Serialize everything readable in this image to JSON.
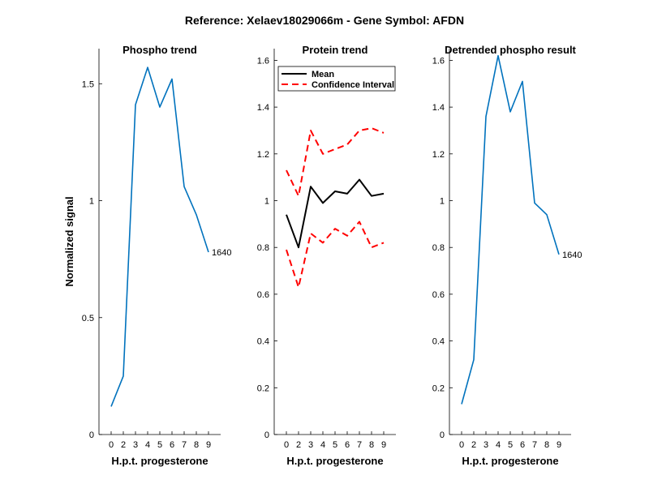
{
  "figure_title": "Reference:  Xelaev18029066m - Gene Symbol:  AFDN",
  "chart_data": [
    {
      "type": "line",
      "title": "Phospho trend",
      "xlabel": "H.p.t. progesterone",
      "ylabel": "Normalized signal",
      "categories": [
        "0",
        "2",
        "3",
        "4",
        "5",
        "6",
        "7",
        "8",
        "9"
      ],
      "xlim": [
        0,
        9
      ],
      "ylim": [
        0,
        1.65
      ],
      "yticks": [
        0,
        0.5,
        1,
        1.5
      ],
      "ytick_labels": [
        "0",
        "0.5",
        "1",
        "1.5"
      ],
      "series": [
        {
          "name": "Phospho",
          "color": "#0072BD",
          "dash": "solid",
          "values": [
            0.12,
            0.25,
            1.41,
            1.57,
            1.4,
            1.52,
            1.06,
            0.94,
            0.78
          ]
        }
      ],
      "annotation": {
        "text": "1640",
        "index": 8
      }
    },
    {
      "type": "line",
      "title": "Protein trend",
      "xlabel": "H.p.t. progesterone",
      "ylabel": "",
      "categories": [
        "0",
        "2",
        "3",
        "4",
        "5",
        "6",
        "7",
        "8",
        "9"
      ],
      "xlim": [
        0,
        9
      ],
      "ylim": [
        0,
        1.65
      ],
      "yticks": [
        0,
        0.2,
        0.4,
        0.6,
        0.8,
        1,
        1.2,
        1.4,
        1.6
      ],
      "ytick_labels": [
        "0",
        "0.2",
        "0.4",
        "0.6",
        "0.8",
        "1",
        "1.2",
        "1.4",
        "1.6"
      ],
      "series": [
        {
          "name": "Mean",
          "color": "#000000",
          "dash": "solid",
          "values": [
            0.94,
            0.8,
            1.06,
            0.99,
            1.04,
            1.03,
            1.09,
            1.02,
            1.03
          ]
        },
        {
          "name": "Confidence Interval",
          "color": "#FF0000",
          "dash": "dashed",
          "values": [
            1.13,
            1.02,
            1.3,
            1.2,
            1.22,
            1.24,
            1.3,
            1.31,
            1.29
          ]
        },
        {
          "name": "Confidence Interval lower",
          "color": "#FF0000",
          "dash": "dashed",
          "in_legend": false,
          "values": [
            0.79,
            0.63,
            0.86,
            0.82,
            0.88,
            0.85,
            0.91,
            0.8,
            0.82
          ]
        }
      ],
      "legend": {
        "location": "top-left",
        "entries": [
          "Mean",
          "Confidence Interval"
        ]
      }
    },
    {
      "type": "line",
      "title": "Detrended phospho result",
      "xlabel": "H.p.t. progesterone",
      "ylabel": "",
      "categories": [
        "0",
        "2",
        "3",
        "4",
        "5",
        "6",
        "7",
        "8",
        "9"
      ],
      "xlim": [
        0,
        9
      ],
      "ylim": [
        0,
        1.65
      ],
      "yticks": [
        0,
        0.2,
        0.4,
        0.6,
        0.8,
        1,
        1.2,
        1.4,
        1.6
      ],
      "ytick_labels": [
        "0",
        "0.2",
        "0.4",
        "0.6",
        "0.8",
        "1",
        "1.2",
        "1.4",
        "1.6"
      ],
      "series": [
        {
          "name": "Detrended",
          "color": "#0072BD",
          "dash": "solid",
          "values": [
            0.13,
            0.32,
            1.36,
            1.62,
            1.38,
            1.51,
            0.99,
            0.94,
            0.77
          ]
        }
      ],
      "annotation": {
        "text": "1640",
        "index": 8
      }
    }
  ]
}
